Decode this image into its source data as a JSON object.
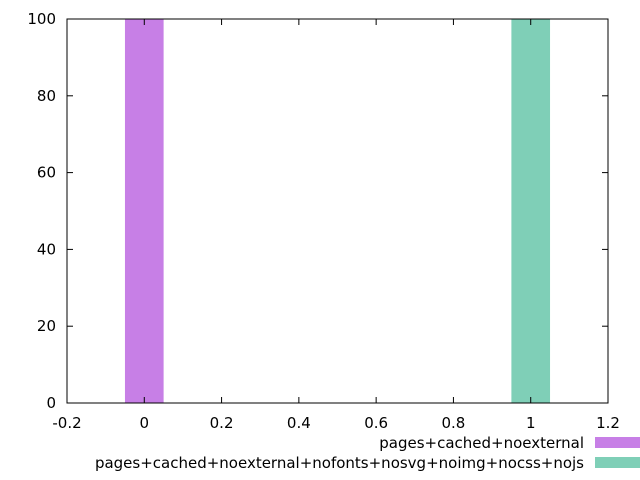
{
  "chart_data": {
    "type": "bar",
    "xlim": [
      -0.2,
      1.2
    ],
    "ylim": [
      0,
      100
    ],
    "x_ticks": [
      -0.2,
      0,
      0.2,
      0.4,
      0.6,
      0.8,
      1,
      1.2
    ],
    "x_tick_labels": [
      "-0.2",
      "0",
      "0.2",
      "0.4",
      "0.6",
      "0.8",
      "1",
      "1.2"
    ],
    "y_ticks": [
      0,
      20,
      40,
      60,
      80,
      100
    ],
    "y_tick_labels": [
      "0",
      "20",
      "40",
      "60",
      "80",
      "100"
    ],
    "bar_width": 0.1,
    "grid": false,
    "legend_position": "bottom-right",
    "series": [
      {
        "name": "pages+cached+noexternal",
        "x": 0,
        "value": 100,
        "color": "#c77fe6"
      },
      {
        "name": "pages+cached+noexternal+nofonts+nosvg+noimg+nocss+nojs",
        "x": 1,
        "value": 100,
        "color": "#7fcfb7"
      }
    ]
  }
}
